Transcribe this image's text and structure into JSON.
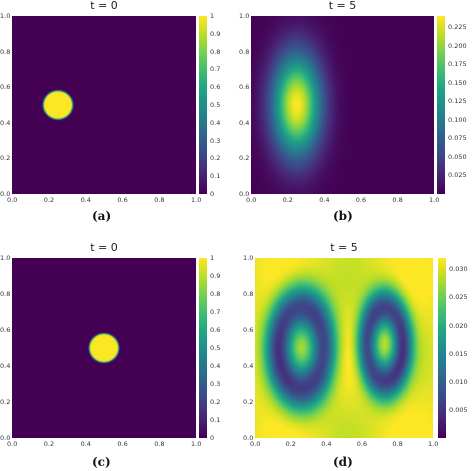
{
  "chart_data": [
    {
      "id": "a",
      "type": "heatmap",
      "title": "t = 0",
      "caption": "(a)",
      "xlim": [
        0,
        1
      ],
      "ylim": [
        0,
        1
      ],
      "x_ticks": [
        "0.0",
        "0.2",
        "0.4",
        "0.6",
        "0.8",
        "1.0"
      ],
      "y_ticks": [
        "0.0",
        "0.2",
        "0.4",
        "0.6",
        "0.8",
        "1.0"
      ],
      "colorbar_range": [
        0,
        1
      ],
      "colorbar_ticks": [
        "0",
        "0.1",
        "0.2",
        "0.3",
        "0.4",
        "0.5",
        "0.6",
        "0.7",
        "0.8",
        "0.9",
        "1"
      ],
      "field": {
        "kind": "disk",
        "cx": 0.25,
        "cy": 0.5,
        "r": 0.08,
        "value": 1
      }
    },
    {
      "id": "b",
      "type": "heatmap",
      "title": "t = 5",
      "caption": "(b)",
      "xlim": [
        0,
        1
      ],
      "ylim": [
        0,
        1
      ],
      "x_ticks": [
        "0.0",
        "0.2",
        "0.4",
        "0.6",
        "0.8",
        "1.0"
      ],
      "y_ticks": [
        "0.0",
        "0.2",
        "0.4",
        "0.6",
        "0.8",
        "1.0"
      ],
      "colorbar_range": [
        0,
        0.24
      ],
      "colorbar_ticks": [
        "0.025",
        "0.050",
        "0.075",
        "0.100",
        "0.125",
        "0.150",
        "0.175",
        "0.200",
        "0.225"
      ],
      "field": {
        "kind": "gaussian",
        "cx": 0.25,
        "cy": 0.5,
        "peak": 0.24
      }
    },
    {
      "id": "c",
      "type": "heatmap",
      "title": "t = 0",
      "caption": "(c)",
      "xlim": [
        0,
        1
      ],
      "ylim": [
        0,
        1
      ],
      "x_ticks": [
        "0.0",
        "0.2",
        "0.4",
        "0.6",
        "0.8",
        "1.0"
      ],
      "y_ticks": [
        "0.0",
        "0.2",
        "0.4",
        "0.6",
        "0.8",
        "1.0"
      ],
      "colorbar_range": [
        0,
        1
      ],
      "colorbar_ticks": [
        "0",
        "0.1",
        "0.2",
        "0.3",
        "0.4",
        "0.5",
        "0.6",
        "0.7",
        "0.8",
        "0.9",
        "1"
      ],
      "field": {
        "kind": "disk",
        "cx": 0.5,
        "cy": 0.5,
        "r": 0.08,
        "value": 1
      }
    },
    {
      "id": "d",
      "type": "heatmap",
      "title": "t = 5",
      "caption": "(d)",
      "xlim": [
        0,
        1
      ],
      "ylim": [
        0,
        1
      ],
      "x_ticks": [
        "0.0",
        "0.2",
        "0.4",
        "0.6",
        "0.8",
        "1.0"
      ],
      "y_ticks": [
        "0.0",
        "0.2",
        "0.4",
        "0.6",
        "0.8",
        "1.0"
      ],
      "colorbar_range": [
        0,
        0.032
      ],
      "colorbar_ticks": [
        "0.005",
        "0.010",
        "0.015",
        "0.020",
        "0.025",
        "0.030"
      ],
      "field": {
        "kind": "two-vortex",
        "min": 0.0,
        "max": 0.031
      }
    }
  ]
}
